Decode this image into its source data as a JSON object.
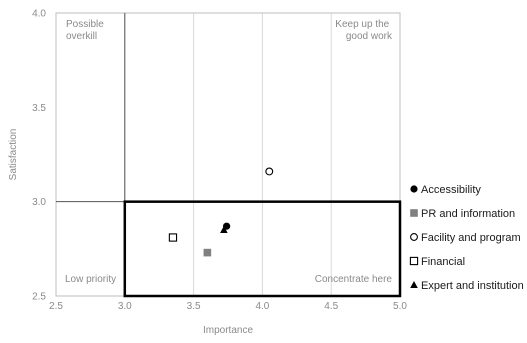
{
  "chart_data": {
    "type": "scatter",
    "title": "",
    "xlabel": "Importance",
    "ylabel": "Satisfaction",
    "xlim": [
      2.5,
      5.0
    ],
    "ylim": [
      2.5,
      4.0
    ],
    "x_ticks": [
      "2.5",
      "3.0",
      "3.5",
      "4.0",
      "4.5",
      "5.0"
    ],
    "y_ticks": [
      "2.5",
      "3.0",
      "3.5",
      "4.0"
    ],
    "grid": "vertical",
    "legend_position": "right",
    "quadrant_labels": {
      "top_left": [
        "Possible",
        "overkill"
      ],
      "top_right": [
        "Keep up the",
        "good work"
      ],
      "bottom_left": "Low priority",
      "bottom_right": "Concentrate here"
    },
    "highlight_region": {
      "x": [
        3.0,
        5.0
      ],
      "y": [
        2.5,
        3.0
      ]
    },
    "series": [
      {
        "name": "Accessibility",
        "marker": "filled-circle",
        "color": "#000000",
        "x": 3.74,
        "y": 2.87
      },
      {
        "name": "PR and information",
        "marker": "filled-square",
        "color": "#808080",
        "x": 3.6,
        "y": 2.73
      },
      {
        "name": "Facility and program",
        "marker": "open-circle",
        "color": "#000000",
        "x": 4.05,
        "y": 3.16
      },
      {
        "name": "Financial",
        "marker": "open-square",
        "color": "#000000",
        "x": 3.35,
        "y": 2.81
      },
      {
        "name": "Expert and institution",
        "marker": "filled-triangle",
        "color": "#000000",
        "x": 3.72,
        "y": 2.85
      }
    ]
  }
}
